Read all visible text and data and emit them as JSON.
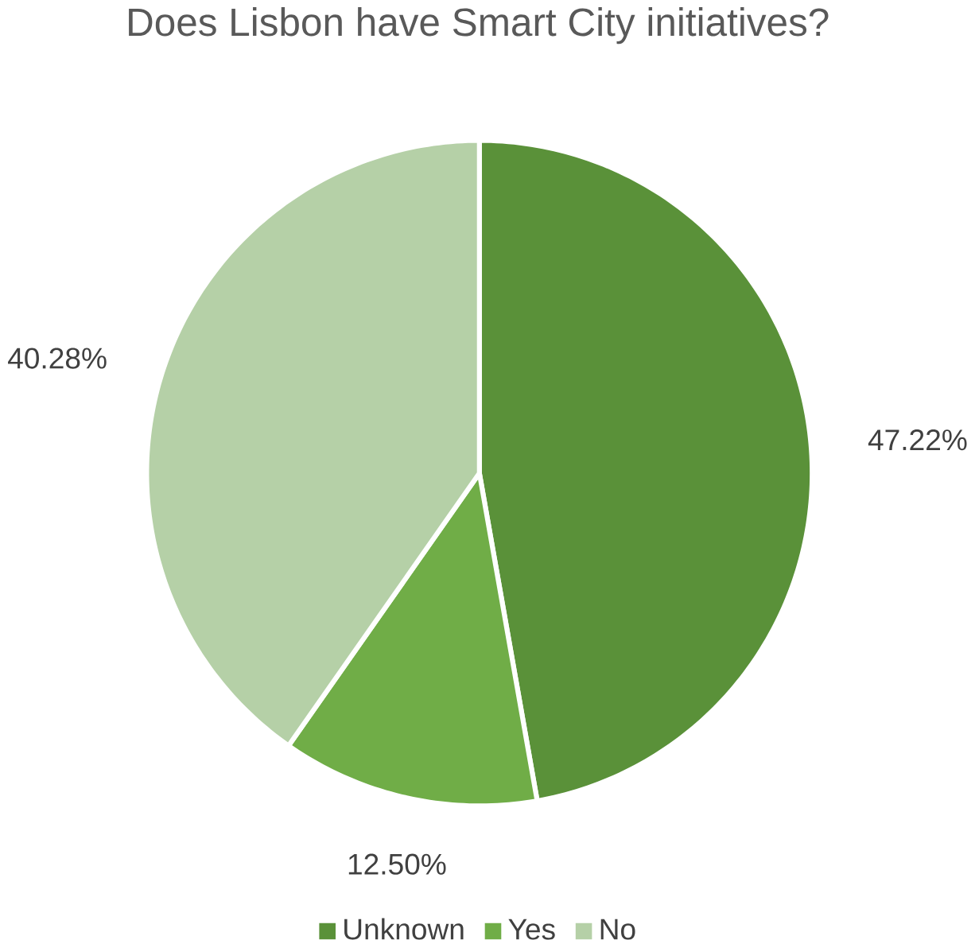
{
  "chart_data": {
    "type": "pie",
    "title": "Does Lisbon have Smart City initiatives?",
    "categories": [
      "Unknown",
      "Yes",
      "No"
    ],
    "values": [
      47.22,
      12.5,
      40.28
    ],
    "value_labels": [
      "47.22%",
      "12.50%",
      "40.28%"
    ],
    "colors": [
      "#5a9139",
      "#70ad47",
      "#b5d0a7"
    ],
    "legend": "bottom"
  }
}
